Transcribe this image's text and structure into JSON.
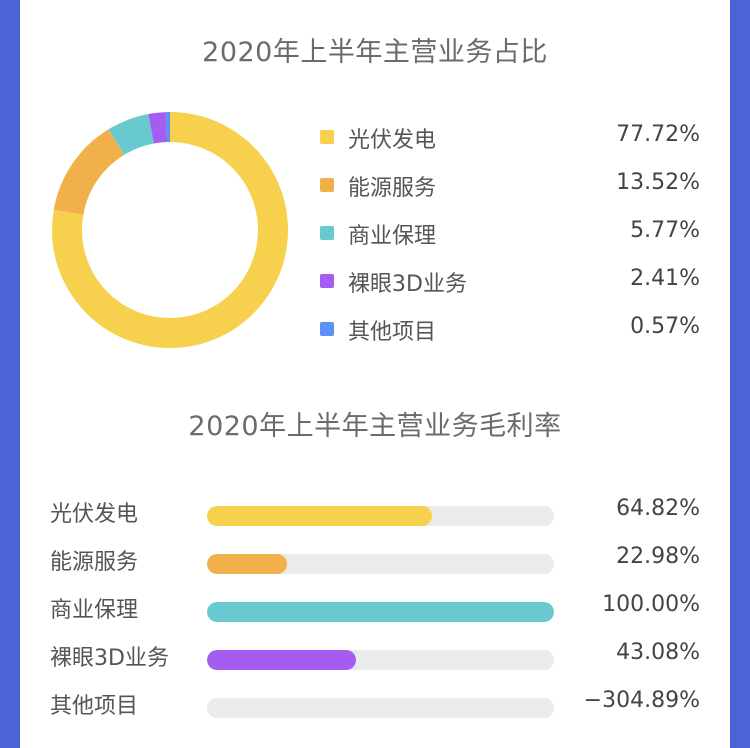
{
  "chart_data": [
    {
      "type": "pie",
      "title": "2020年上半年主营业务占比",
      "categories": [
        "光伏发电",
        "能源服务",
        "商业保理",
        "裸眼3D业务",
        "其他项目"
      ],
      "values": [
        77.72,
        13.52,
        5.77,
        2.41,
        0.57
      ],
      "value_labels": [
        "77.72%",
        "13.52%",
        "5.77%",
        "2.41%",
        "0.57%"
      ],
      "colors": [
        "#f7d14d",
        "#f2b04a",
        "#68c9cf",
        "#a55cf1",
        "#5a93f5"
      ],
      "legend": "right"
    },
    {
      "type": "bar",
      "title": "2020年上半年主营业务毛利率",
      "categories": [
        "光伏发电",
        "能源服务",
        "商业保理",
        "裸眼3D业务",
        "其他项目"
      ],
      "values": [
        64.82,
        22.98,
        100.0,
        43.08,
        -304.89
      ],
      "value_labels": [
        "64.82%",
        "22.98%",
        "100.00%",
        "43.08%",
        "−304.89%"
      ],
      "colors": [
        "#f7d14d",
        "#f2b04a",
        "#68c9cf",
        "#a55cf1",
        "#5a93f5"
      ],
      "xlim": [
        0,
        100
      ]
    }
  ]
}
